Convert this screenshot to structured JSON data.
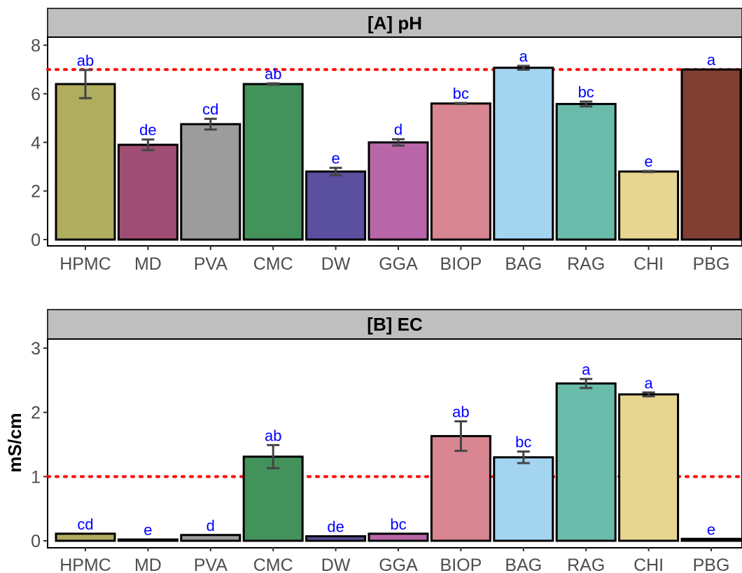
{
  "chart_data": [
    {
      "type": "bar",
      "title": "[A] pH",
      "ylabel": "",
      "ylim": [
        0,
        8
      ],
      "yticks": [
        0,
        2,
        4,
        6,
        8
      ],
      "reference_line": {
        "value": 7,
        "style": "dotted",
        "color": "#ff0000"
      },
      "categories": [
        "HPMC",
        "MD",
        "PVA",
        "CMC",
        "DW",
        "GGA",
        "BIOP",
        "BAG",
        "RAG",
        "CHI",
        "PBG"
      ],
      "values": [
        6.4,
        3.9,
        4.75,
        6.4,
        2.8,
        4.0,
        5.6,
        7.07,
        5.58,
        2.8,
        7.0
      ],
      "errors": [
        0.58,
        0.22,
        0.22,
        0.03,
        0.15,
        0.13,
        0.02,
        0.08,
        0.1,
        0.02,
        0.0
      ],
      "significance": [
        "ab",
        "de",
        "cd",
        "ab",
        "e",
        "d",
        "bc",
        "a",
        "bc",
        "e",
        "a"
      ],
      "colors": [
        "#b0ad5f",
        "#a04d74",
        "#9c9c9c",
        "#43925c",
        "#5b4f9f",
        "#b966a8",
        "#d88691",
        "#a3d5f1",
        "#69bca9",
        "#e7d691",
        "#7f3f32"
      ]
    },
    {
      "type": "bar",
      "title": "[B] EC",
      "ylabel": "mS/cm",
      "ylim": [
        0,
        3
      ],
      "yticks": [
        0,
        1,
        2,
        3
      ],
      "reference_line": {
        "value": 1,
        "style": "dotted",
        "color": "#ff0000"
      },
      "categories": [
        "HPMC",
        "MD",
        "PVA",
        "CMC",
        "DW",
        "GGA",
        "BIOP",
        "BAG",
        "RAG",
        "CHI",
        "PBG"
      ],
      "values": [
        0.11,
        0.02,
        0.09,
        1.31,
        0.07,
        0.11,
        1.63,
        1.3,
        2.45,
        2.28,
        0.03
      ],
      "errors": [
        0.0,
        0.0,
        0.0,
        0.18,
        0.0,
        0.0,
        0.23,
        0.09,
        0.07,
        0.03,
        0.0
      ],
      "significance": [
        "cd",
        "e",
        "d",
        "ab",
        "de",
        "bc",
        "ab",
        "bc",
        "a",
        "a",
        "e"
      ],
      "colors": [
        "#b0ad5f",
        "#a04d74",
        "#9c9c9c",
        "#43925c",
        "#5b4f9f",
        "#b966a8",
        "#d88691",
        "#a3d5f1",
        "#69bca9",
        "#e7d691",
        "#7f3f32"
      ]
    }
  ]
}
